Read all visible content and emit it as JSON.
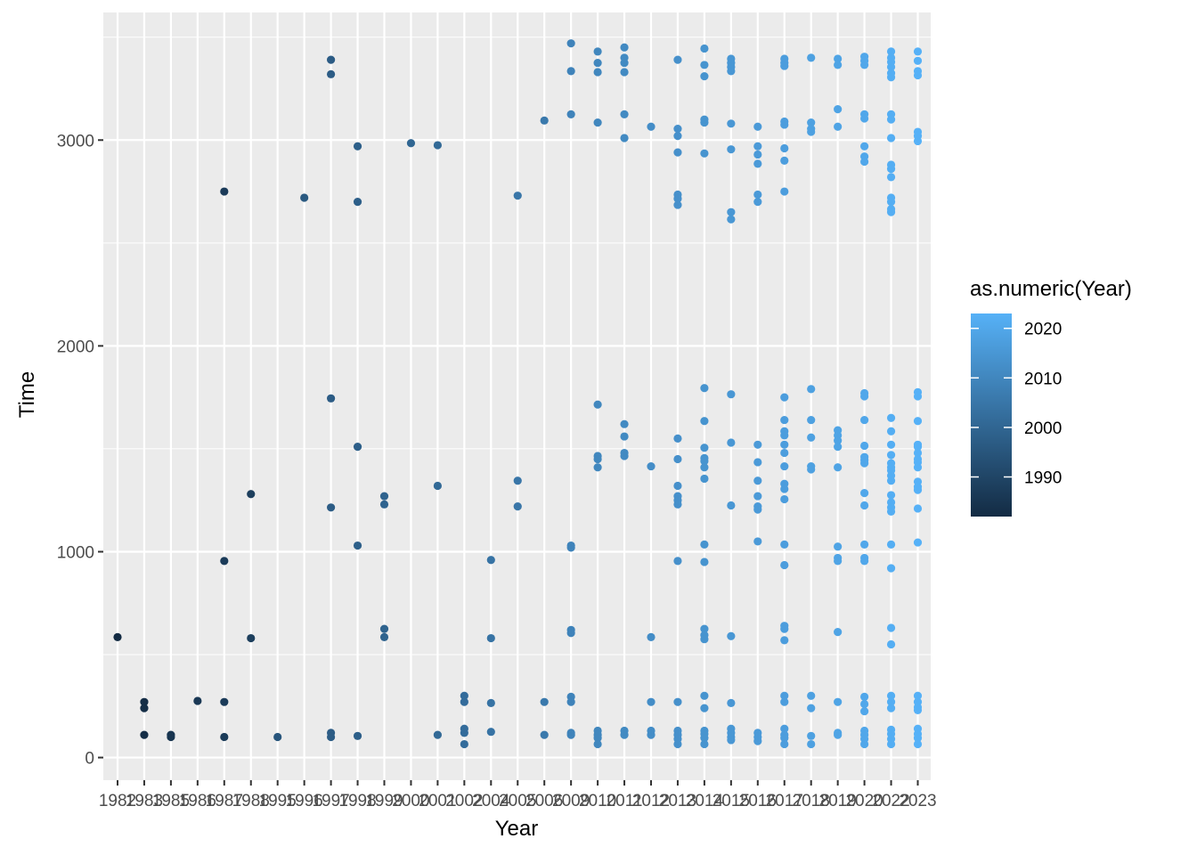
{
  "chart_data": {
    "type": "scatter",
    "title": "",
    "xlabel": "Year",
    "ylabel": "Time",
    "x_ticks": [
      "1982",
      "1983",
      "1985",
      "1986",
      "1987",
      "1988",
      "1995",
      "1996",
      "1997",
      "1998",
      "1999",
      "2000",
      "2001",
      "2002",
      "2004",
      "2005",
      "2006",
      "2009",
      "2010",
      "2011",
      "2012",
      "2013",
      "2014",
      "2015",
      "2016",
      "2017",
      "2018",
      "2019",
      "2020",
      "2022",
      "2023"
    ],
    "y_ticks": [
      0,
      1000,
      2000,
      3000
    ],
    "ylim": [
      -110,
      3620
    ],
    "grid": true,
    "legend": {
      "title": "as.numeric(Year)",
      "position": "right",
      "range": [
        1982,
        2023
      ],
      "ticks": [
        1990,
        2000,
        2010,
        2020
      ],
      "color_low": "#132b43",
      "color_high": "#56b1f7"
    },
    "point_color_by": "year",
    "points": [
      {
        "year": "1982",
        "time": [
          585
        ]
      },
      {
        "year": "1983",
        "time": [
          270,
          240,
          110
        ]
      },
      {
        "year": "1985",
        "time": [
          110,
          100
        ]
      },
      {
        "year": "1986",
        "time": [
          275
        ]
      },
      {
        "year": "1987",
        "time": [
          2750,
          955,
          270,
          100
        ]
      },
      {
        "year": "1988",
        "time": [
          1280,
          580
        ]
      },
      {
        "year": "1995",
        "time": [
          100
        ]
      },
      {
        "year": "1996",
        "time": [
          2720
        ]
      },
      {
        "year": "1997",
        "time": [
          3390,
          3320,
          1745,
          1215,
          120,
          100
        ]
      },
      {
        "year": "1998",
        "time": [
          2970,
          2700,
          1510,
          1030,
          105
        ]
      },
      {
        "year": "1999",
        "time": [
          1270,
          1230,
          625,
          585
        ]
      },
      {
        "year": "2000",
        "time": [
          2985
        ]
      },
      {
        "year": "2001",
        "time": [
          2975,
          1320,
          110
        ]
      },
      {
        "year": "2002",
        "time": [
          300,
          270,
          140,
          120,
          65
        ]
      },
      {
        "year": "2004",
        "time": [
          960,
          580,
          265,
          125
        ]
      },
      {
        "year": "2005",
        "time": [
          2730,
          1345,
          1220
        ]
      },
      {
        "year": "2006",
        "time": [
          3095,
          270,
          110
        ]
      },
      {
        "year": "2009",
        "time": [
          3470,
          3335,
          3125,
          1030,
          1020,
          620,
          605,
          295,
          270,
          120,
          110
        ]
      },
      {
        "year": "2010",
        "time": [
          3430,
          3375,
          3330,
          3085,
          1715,
          1465,
          1450,
          1410,
          130,
          110,
          95,
          65
        ]
      },
      {
        "year": "2011",
        "time": [
          3450,
          3400,
          3375,
          3330,
          3125,
          3010,
          1620,
          1560,
          1480,
          1465,
          130,
          110
        ]
      },
      {
        "year": "2012",
        "time": [
          3065,
          1415,
          585,
          270,
          130,
          110
        ]
      },
      {
        "year": "2013",
        "time": [
          3390,
          3055,
          3020,
          2940,
          2735,
          2715,
          2685,
          1550,
          1450,
          1320,
          1270,
          1250,
          1230,
          955,
          270,
          130,
          110,
          90,
          65
        ]
      },
      {
        "year": "2014",
        "time": [
          3445,
          3365,
          3310,
          3100,
          3085,
          2935,
          1795,
          1635,
          1505,
          1455,
          1440,
          1410,
          1355,
          1035,
          950,
          625,
          595,
          575,
          300,
          240,
          130,
          115,
          95,
          65
        ]
      },
      {
        "year": "2015",
        "time": [
          3395,
          3375,
          3355,
          3335,
          3080,
          2955,
          2650,
          2615,
          1765,
          1530,
          1225,
          590,
          265,
          140,
          120,
          100,
          85
        ]
      },
      {
        "year": "2016",
        "time": [
          3065,
          2970,
          2930,
          2885,
          2735,
          2700,
          1520,
          1435,
          1345,
          1270,
          1220,
          1205,
          1050,
          120,
          100,
          80
        ]
      },
      {
        "year": "2017",
        "time": [
          3395,
          3375,
          3360,
          3090,
          3075,
          2960,
          2900,
          2750,
          1750,
          1640,
          1585,
          1565,
          1520,
          1480,
          1415,
          1330,
          1305,
          1255,
          1035,
          935,
          640,
          625,
          570,
          300,
          270,
          140,
          110,
          95,
          65
        ]
      },
      {
        "year": "2018",
        "time": [
          3400,
          3085,
          3055,
          3040,
          1790,
          1640,
          1555,
          1415,
          1400,
          300,
          240,
          105,
          65
        ]
      },
      {
        "year": "2019",
        "time": [
          3395,
          3365,
          3150,
          3065,
          1590,
          1565,
          1540,
          1510,
          1410,
          1025,
          970,
          955,
          610,
          270,
          120,
          110
        ]
      },
      {
        "year": "2020",
        "time": [
          3405,
          3385,
          3365,
          3125,
          3105,
          2970,
          2920,
          2895,
          1770,
          1755,
          1640,
          1515,
          1460,
          1445,
          1430,
          1285,
          1225,
          1035,
          970,
          955,
          295,
          260,
          225,
          130,
          110,
          90,
          65
        ]
      },
      {
        "year": "2022",
        "time": [
          3430,
          3400,
          3380,
          3355,
          3325,
          3305,
          3125,
          3100,
          3010,
          2880,
          2860,
          2820,
          2720,
          2700,
          2665,
          2650,
          1650,
          1585,
          1520,
          1470,
          1430,
          1410,
          1395,
          1370,
          1345,
          1275,
          1240,
          1215,
          1195,
          1035,
          920,
          630,
          550,
          300,
          270,
          240,
          135,
          115,
          90,
          65
        ]
      },
      {
        "year": "2023",
        "time": [
          3430,
          3385,
          3335,
          3315,
          3040,
          3020,
          2995,
          1775,
          1755,
          1635,
          1520,
          1510,
          1480,
          1450,
          1435,
          1410,
          1340,
          1315,
          1300,
          1210,
          1045,
          300,
          270,
          245,
          230,
          140,
          115,
          95,
          65
        ]
      }
    ]
  }
}
